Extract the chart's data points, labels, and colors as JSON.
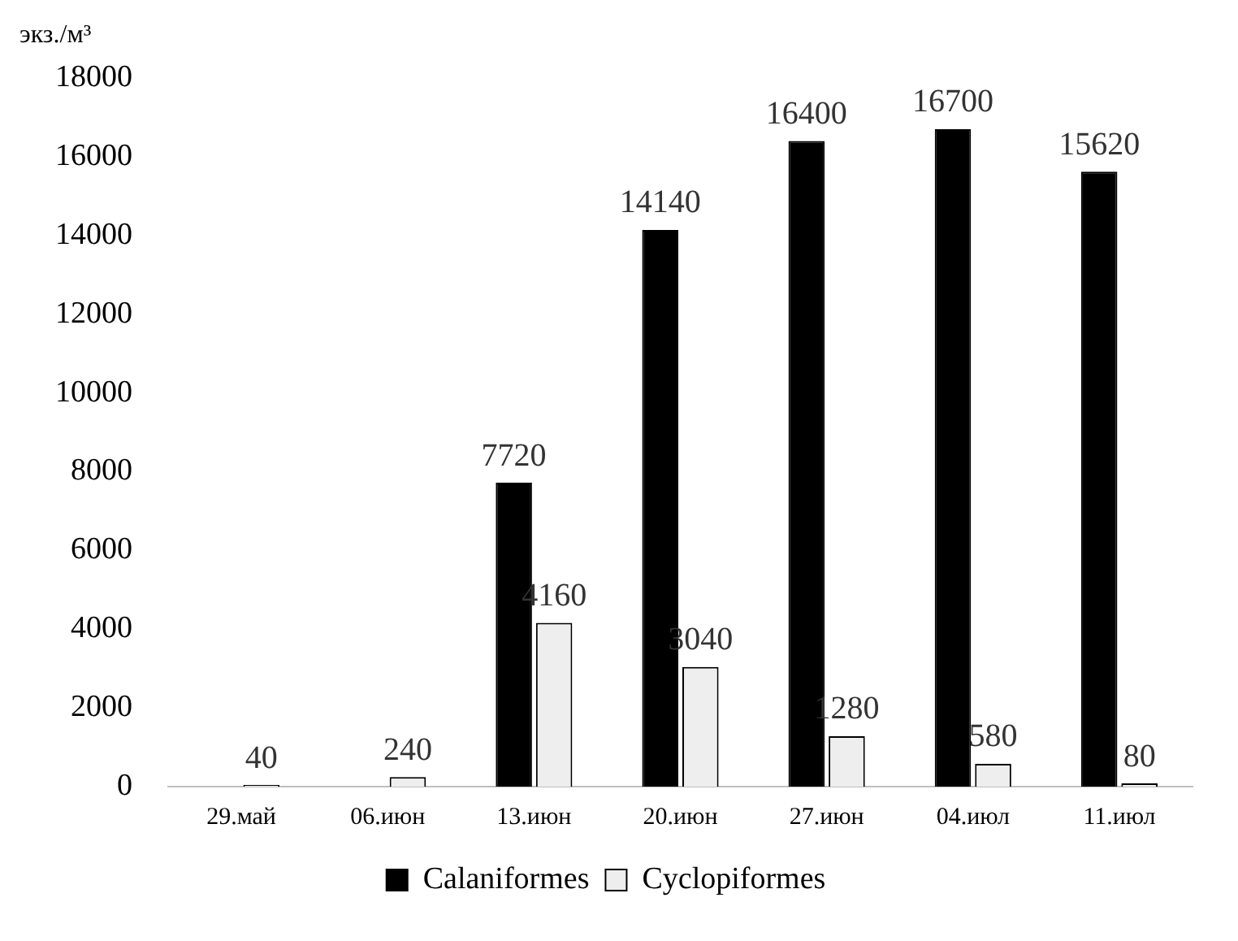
{
  "chart_data": {
    "type": "bar",
    "ylabel": "экз./м³",
    "categories": [
      "29.май",
      "06.июн",
      "13.июн",
      "20.июн",
      "27.июн",
      "04.июл",
      "11.июл"
    ],
    "series": [
      {
        "name": "Calaniformes",
        "color": "#000000",
        "values": [
          null,
          null,
          7720,
          14140,
          16400,
          16700,
          15620
        ]
      },
      {
        "name": "Cyclopiformes",
        "color": "#eeeeee",
        "values": [
          40,
          240,
          4160,
          3040,
          1280,
          580,
          80
        ]
      }
    ],
    "ylim": [
      0,
      18000
    ],
    "yticks": [
      0,
      2000,
      4000,
      6000,
      8000,
      10000,
      12000,
      14000,
      16000,
      18000
    ],
    "grid": false,
    "legend": "bottom",
    "data_labels": true
  }
}
